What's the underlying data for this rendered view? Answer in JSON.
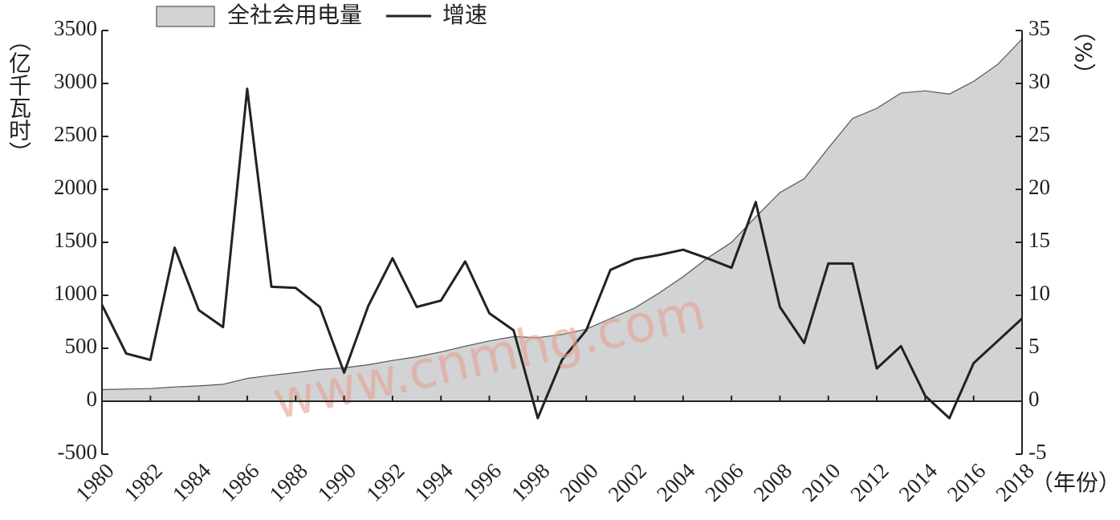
{
  "chart_data": {
    "type": "area-line",
    "legend_position": "top",
    "ylabel": "（亿千瓦时）",
    "y2label": "（%）",
    "xlabel": "（年份）",
    "watermark": "www.cnmhg.com",
    "x": [
      1980,
      1981,
      1982,
      1983,
      1984,
      1985,
      1986,
      1987,
      1988,
      1989,
      1990,
      1991,
      1992,
      1993,
      1994,
      1995,
      1996,
      1997,
      1998,
      1999,
      2000,
      2001,
      2002,
      2003,
      2004,
      2005,
      2006,
      2007,
      2008,
      2009,
      2010,
      2011,
      2012,
      2013,
      2014,
      2015,
      2016,
      2017,
      2018
    ],
    "xlim": [
      1980,
      2018
    ],
    "xticks": [
      1980,
      1982,
      1984,
      1986,
      1988,
      1990,
      1992,
      1994,
      1996,
      1998,
      2000,
      2002,
      2004,
      2006,
      2008,
      2010,
      2012,
      2014,
      2016,
      2018
    ],
    "ylim": [
      -500,
      3500
    ],
    "yticks": [
      -500,
      0,
      500,
      1000,
      1500,
      2000,
      2500,
      3000,
      3500
    ],
    "y2lim": [
      -5,
      35
    ],
    "y2ticks": [
      -5,
      0,
      5,
      10,
      15,
      20,
      25,
      30,
      35
    ],
    "series": [
      {
        "name": "全社会用电量",
        "type": "area",
        "color": "#d1d3d5",
        "axis": "y",
        "values": [
          110,
          115,
          120,
          135,
          145,
          160,
          215,
          245,
          270,
          300,
          315,
          345,
          385,
          420,
          465,
          520,
          570,
          610,
          600,
          630,
          680,
          780,
          880,
          1020,
          1175,
          1350,
          1500,
          1740,
          1970,
          2100,
          2390,
          2670,
          2765,
          2910,
          2930,
          2900,
          3020,
          3180,
          3420
        ]
      },
      {
        "name": "增速",
        "type": "line",
        "color": "#222222",
        "axis": "y2",
        "values": [
          9.1,
          4.5,
          3.9,
          14.5,
          8.6,
          7.0,
          29.5,
          10.8,
          10.7,
          8.9,
          2.7,
          9.0,
          13.5,
          8.9,
          9.5,
          13.2,
          8.3,
          6.7,
          -1.6,
          3.9,
          6.7,
          12.4,
          13.4,
          13.8,
          14.3,
          13.5,
          12.6,
          18.8,
          8.9,
          5.5,
          13.0,
          13.0,
          3.1,
          5.2,
          0.5,
          -1.6,
          3.6,
          5.7,
          7.8
        ]
      }
    ]
  }
}
